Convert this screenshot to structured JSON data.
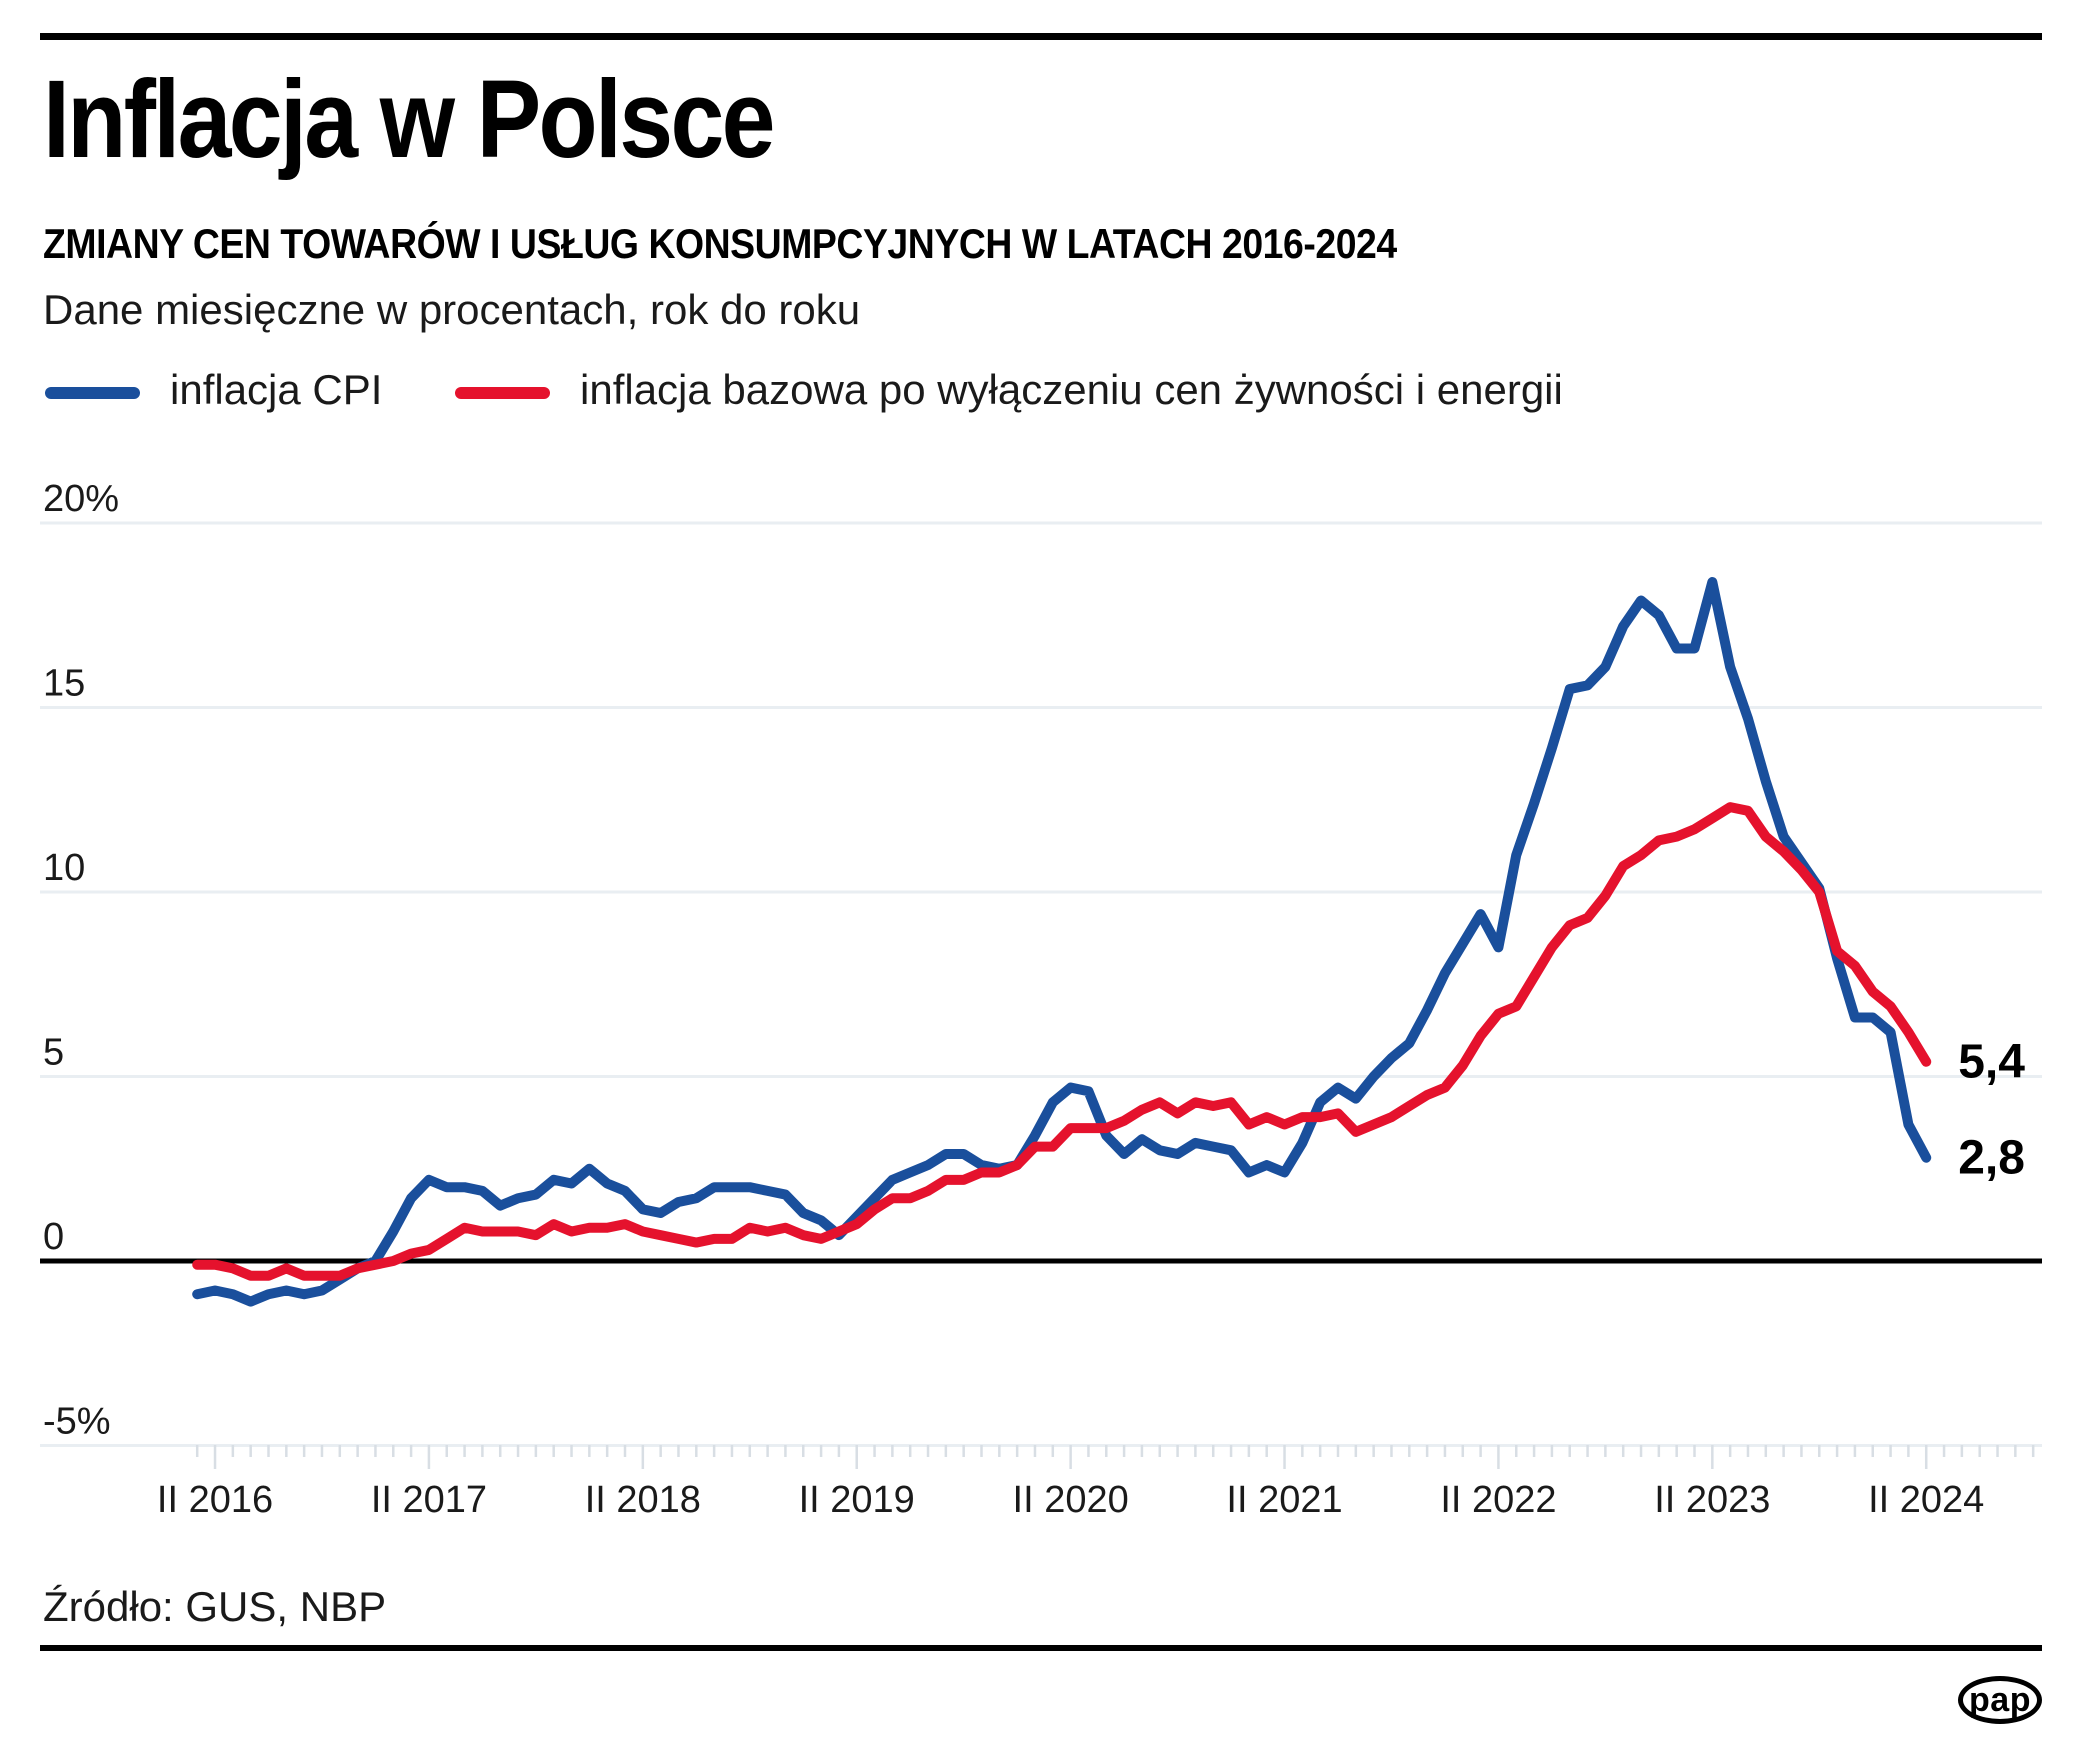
{
  "header": {
    "title": "Inflacja w Polsce",
    "subtitle": "ZMIANY CEN TOWARÓW I USŁUG KONSUMPCYJNYCH W LATACH 2016-2024",
    "note": "Dane miesięczne w procentach, rok do roku"
  },
  "source": "Źródło: GUS, NBP",
  "logo_text": "pap",
  "colors": {
    "cpi_blue": "#1a4f9c",
    "core_red": "#e5122d",
    "gridline": "#e9eef2",
    "tick": "#d8dee4",
    "zero_line": "#000000",
    "axis_text": "#1a1a1a"
  },
  "chart_data": {
    "type": "line",
    "title": "Inflacja w Polsce",
    "x_start_month": "2016-01",
    "x_end_month": "2024-02",
    "x_tick_labels": [
      "II 2016",
      "II 2017",
      "II 2018",
      "II 2019",
      "II 2020",
      "II 2021",
      "II 2022",
      "II 2023",
      "II 2024"
    ],
    "y_ticks": [
      "20%",
      "15",
      "10",
      "5",
      "0",
      "-5%"
    ],
    "y_tick_values": [
      20,
      15,
      10,
      5,
      0,
      -5
    ],
    "ylim": [
      -5.5,
      21
    ],
    "grid": true,
    "legend_position": "top",
    "series": [
      {
        "name": "inflacja CPI",
        "color": "#1a4f9c",
        "end_label": "2,8",
        "values": [
          -0.9,
          -0.8,
          -0.9,
          -1.1,
          -0.9,
          -0.8,
          -0.9,
          -0.8,
          -0.5,
          -0.2,
          0.0,
          0.8,
          1.7,
          2.2,
          2.0,
          2.0,
          1.9,
          1.5,
          1.7,
          1.8,
          2.2,
          2.1,
          2.5,
          2.1,
          1.9,
          1.4,
          1.3,
          1.6,
          1.7,
          2.0,
          2.0,
          2.0,
          1.9,
          1.8,
          1.3,
          1.1,
          0.7,
          1.2,
          1.7,
          2.2,
          2.4,
          2.6,
          2.9,
          2.9,
          2.6,
          2.5,
          2.6,
          3.4,
          4.3,
          4.7,
          4.6,
          3.4,
          2.9,
          3.3,
          3.0,
          2.9,
          3.2,
          3.1,
          3.0,
          2.4,
          2.6,
          2.4,
          3.2,
          4.3,
          4.7,
          4.4,
          5.0,
          5.5,
          5.9,
          6.8,
          7.8,
          8.6,
          9.4,
          8.5,
          11.0,
          12.4,
          13.9,
          15.5,
          15.6,
          16.1,
          17.2,
          17.9,
          17.5,
          16.6,
          16.6,
          18.4,
          16.1,
          14.7,
          13.0,
          11.5,
          10.8,
          10.1,
          8.2,
          6.6,
          6.6,
          6.2,
          3.7,
          2.8
        ]
      },
      {
        "name": "inflacja bazowa po wyłączeniu cen żywności i energii",
        "color": "#e5122d",
        "end_label": "5,4",
        "values": [
          -0.1,
          -0.1,
          -0.2,
          -0.4,
          -0.4,
          -0.2,
          -0.4,
          -0.4,
          -0.4,
          -0.2,
          -0.1,
          0.0,
          0.2,
          0.3,
          0.6,
          0.9,
          0.8,
          0.8,
          0.8,
          0.7,
          1.0,
          0.8,
          0.9,
          0.9,
          1.0,
          0.8,
          0.7,
          0.6,
          0.5,
          0.6,
          0.6,
          0.9,
          0.8,
          0.9,
          0.7,
          0.6,
          0.8,
          1.0,
          1.4,
          1.7,
          1.7,
          1.9,
          2.2,
          2.2,
          2.4,
          2.4,
          2.6,
          3.1,
          3.1,
          3.6,
          3.6,
          3.6,
          3.8,
          4.1,
          4.3,
          4.0,
          4.3,
          4.2,
          4.3,
          3.7,
          3.9,
          3.7,
          3.9,
          3.9,
          4.0,
          3.5,
          3.7,
          3.9,
          4.2,
          4.5,
          4.7,
          5.3,
          6.1,
          6.7,
          6.9,
          7.7,
          8.5,
          9.1,
          9.3,
          9.9,
          10.7,
          11.0,
          11.4,
          11.5,
          11.7,
          12.0,
          12.3,
          12.2,
          11.5,
          11.1,
          10.6,
          10.0,
          8.4,
          8.0,
          7.3,
          6.9,
          6.2,
          5.4
        ]
      }
    ]
  }
}
